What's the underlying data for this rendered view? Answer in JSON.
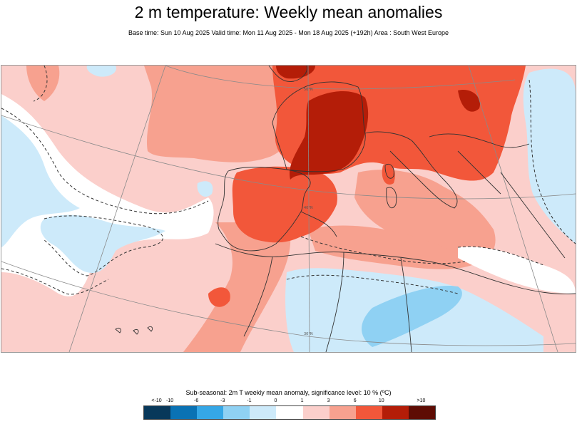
{
  "title": "2 m temperature: Weekly mean anomalies",
  "subtitle": "Base time: Sun 10 Aug 2025 Valid time: Mon 11 Aug 2025 - Mon 18 Aug 2025 (+192h) Area : South West Europe",
  "map": {
    "area": "South West Europe",
    "variable": "2 m temperature weekly mean anomaly",
    "graticule_labels": [
      "40°N",
      "50°N",
      "30°N"
    ]
  },
  "legend": {
    "caption": "Sub-seasonal: 2m T weekly mean anomaly, significance level: 10 % (ºC)",
    "tick_labels": [
      "<-10",
      "-10",
      "-6",
      "-3",
      "-1",
      "0",
      "1",
      "3",
      "6",
      "10",
      ">10"
    ],
    "colors": [
      "#08385a",
      "#0a72b4",
      "#35a7e6",
      "#8fd1f3",
      "#cdeafa",
      "#ffffff",
      "#fbcfcb",
      "#f7a18f",
      "#f2573a",
      "#b41d08",
      "#5e0c04"
    ]
  },
  "palette": {
    "strong_warm": "#b41d08",
    "warm": "#f2573a",
    "mild_warm": "#f7a18f",
    "slight_warm": "#fbcfcb",
    "slight_cool": "#cdeafa",
    "cool": "#8fd1f3",
    "border": "#333333",
    "graticule": "#8a8a8a"
  }
}
